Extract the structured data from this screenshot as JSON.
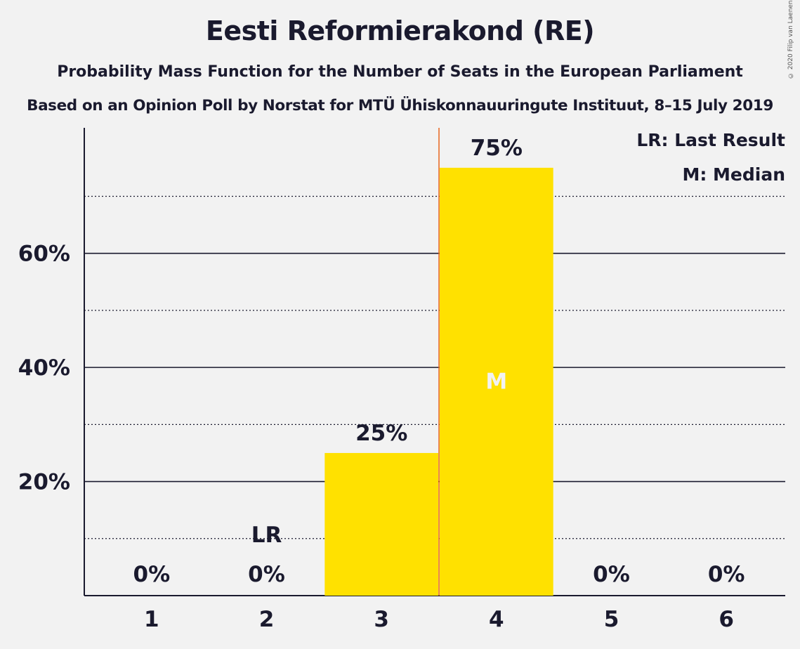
{
  "title": "Eesti Reformierakond (RE)",
  "subtitle": "Probability Mass Function for the Number of Seats in the European Parliament",
  "subtitle2": "Based on an Opinion Poll by Norstat for MTÜ Ühiskonnauuringute Instituut, 8–15 July 2019",
  "copyright": "© 2020 Filip van Laenen",
  "legend": {
    "last_result": "LR: Last Result",
    "median": "M: Median"
  },
  "colors": {
    "bar": "#ffe100",
    "median_line": "#e8641e",
    "text": "#1a1a2e",
    "background": "#f2f2f2"
  },
  "chart_data": {
    "type": "bar",
    "categories": [
      "1",
      "2",
      "3",
      "4",
      "5",
      "6"
    ],
    "values": [
      0,
      0,
      25,
      75,
      0,
      0
    ],
    "value_labels": [
      "0%",
      "0%",
      "25%",
      "75%",
      "0%",
      "0%"
    ],
    "ylim": [
      0,
      82
    ],
    "yticks_major": [
      20,
      40,
      60
    ],
    "ytick_labels": [
      "20%",
      "40%",
      "60%"
    ],
    "yticks_minor": [
      10,
      30,
      50,
      70
    ],
    "last_result_seat": "2",
    "last_result_label": "LR",
    "median_seat": "4",
    "median_label": "M",
    "grid": true
  }
}
